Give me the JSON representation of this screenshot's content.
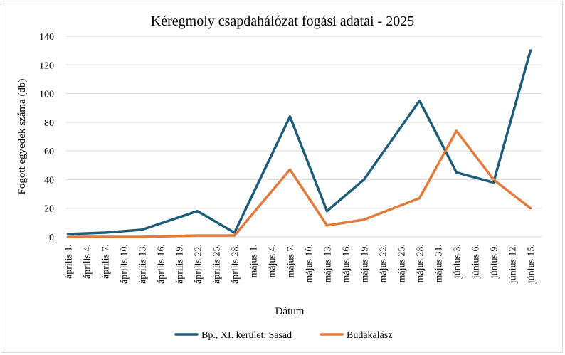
{
  "chart_data": {
    "type": "line",
    "title": "Kéregmoly csapdahálózat fogási adatai - 2025",
    "xlabel": "Dátum",
    "ylabel": "Fogott egyedek száma (db)",
    "ylim": [
      0,
      140
    ],
    "yticks": [
      0,
      20,
      40,
      60,
      80,
      100,
      120,
      140
    ],
    "grid": "horizontal",
    "legend": "bottom",
    "categories": [
      "április 1.",
      "április 4.",
      "április 7.",
      "április 10.",
      "április 13.",
      "április 16.",
      "április 19.",
      "április 22.",
      "április 25.",
      "április 28.",
      "május 1.",
      "május 4.",
      "május 7.",
      "május 10.",
      "május 13.",
      "május 16.",
      "május 19.",
      "május 22.",
      "május 25.",
      "május 28.",
      "május 31.",
      "június 3.",
      "június 6.",
      "június 9.",
      "június 12.",
      "június 15."
    ],
    "series": [
      {
        "name": "Bp., XI. kerület, Sasad",
        "color": "#1f5c7a",
        "points": [
          {
            "x": "április 1.",
            "y": 2
          },
          {
            "x": "április 7.",
            "y": 3
          },
          {
            "x": "április 13.",
            "y": 5
          },
          {
            "x": "április 22.",
            "y": 18
          },
          {
            "x": "április 28.",
            "y": 3
          },
          {
            "x": "május 7.",
            "y": 84
          },
          {
            "x": "május 13.",
            "y": 18
          },
          {
            "x": "május 19.",
            "y": 40
          },
          {
            "x": "május 28.",
            "y": 95
          },
          {
            "x": "június 3.",
            "y": 45
          },
          {
            "x": "június 9.",
            "y": 38
          },
          {
            "x": "június 15.",
            "y": 130
          }
        ]
      },
      {
        "name": "Budakalász",
        "color": "#e07b3c",
        "points": [
          {
            "x": "április 1.",
            "y": 0
          },
          {
            "x": "április 7.",
            "y": 0
          },
          {
            "x": "április 13.",
            "y": 0
          },
          {
            "x": "április 22.",
            "y": 1
          },
          {
            "x": "április 28.",
            "y": 1
          },
          {
            "x": "május 7.",
            "y": 47
          },
          {
            "x": "május 13.",
            "y": 8
          },
          {
            "x": "május 19.",
            "y": 12
          },
          {
            "x": "május 28.",
            "y": 27
          },
          {
            "x": "június 3.",
            "y": 74
          },
          {
            "x": "június 9.",
            "y": 40
          },
          {
            "x": "június 15.",
            "y": 20
          }
        ]
      }
    ]
  }
}
